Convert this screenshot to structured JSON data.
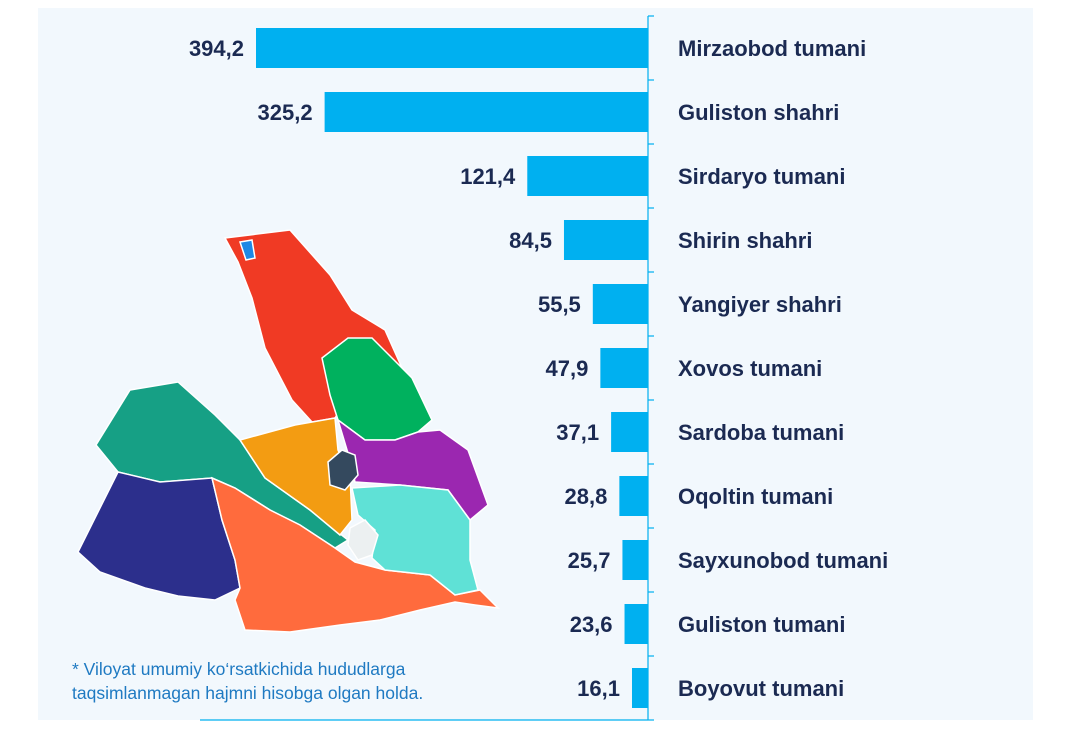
{
  "chart_data": {
    "type": "bar",
    "orientation": "horizontal",
    "categories": [
      "Mirzaobod tumani",
      "Guliston shahri",
      "Sirdaryo tumani",
      "Shirin shahri",
      "Yangiyer shahri",
      "Xovos tumani",
      "Sardoba tumani",
      "Oqoltin tumani",
      "Sayxunobod tumani",
      "Guliston tumani",
      "Boyovut tumani"
    ],
    "values": [
      394.2,
      325.2,
      121.4,
      84.5,
      55.5,
      47.9,
      37.1,
      28.8,
      25.7,
      23.6,
      16.1
    ],
    "value_labels": [
      "394,2",
      "325,2",
      "121,4",
      "84,5",
      "55,5",
      "47,9",
      "37,1",
      "28,8",
      "25,7",
      "23,6",
      "16,1"
    ],
    "bar_color": "#00b0f0",
    "text_color": "#1b2a52",
    "grid": false,
    "legend": "none"
  },
  "map": {
    "regions": [
      {
        "name": "mirzaobod",
        "color": "#f03a24"
      },
      {
        "name": "sardoba",
        "color": "#00b15e"
      },
      {
        "name": "sayxunobod",
        "color": "#16a085"
      },
      {
        "name": "guliston-tumani",
        "color": "#f39c12"
      },
      {
        "name": "xovos",
        "color": "#9b27b0"
      },
      {
        "name": "boyovut",
        "color": "#2c2f8c"
      },
      {
        "name": "oqoltin",
        "color": "#ff6b3d"
      },
      {
        "name": "sirdaryo",
        "color": "#5fe1d6"
      },
      {
        "name": "guliston-shahri",
        "color": "#34495e"
      },
      {
        "name": "shirin",
        "color": "#1e88e5"
      },
      {
        "name": "yangiyer",
        "color": "#ecf0f1"
      }
    ]
  },
  "footnote": {
    "line1": "* Viloyat umumiy ko‘rsatkichida hududlarga",
    "line2": "taqsimlanmagan hajmni hisobga olgan holda."
  }
}
